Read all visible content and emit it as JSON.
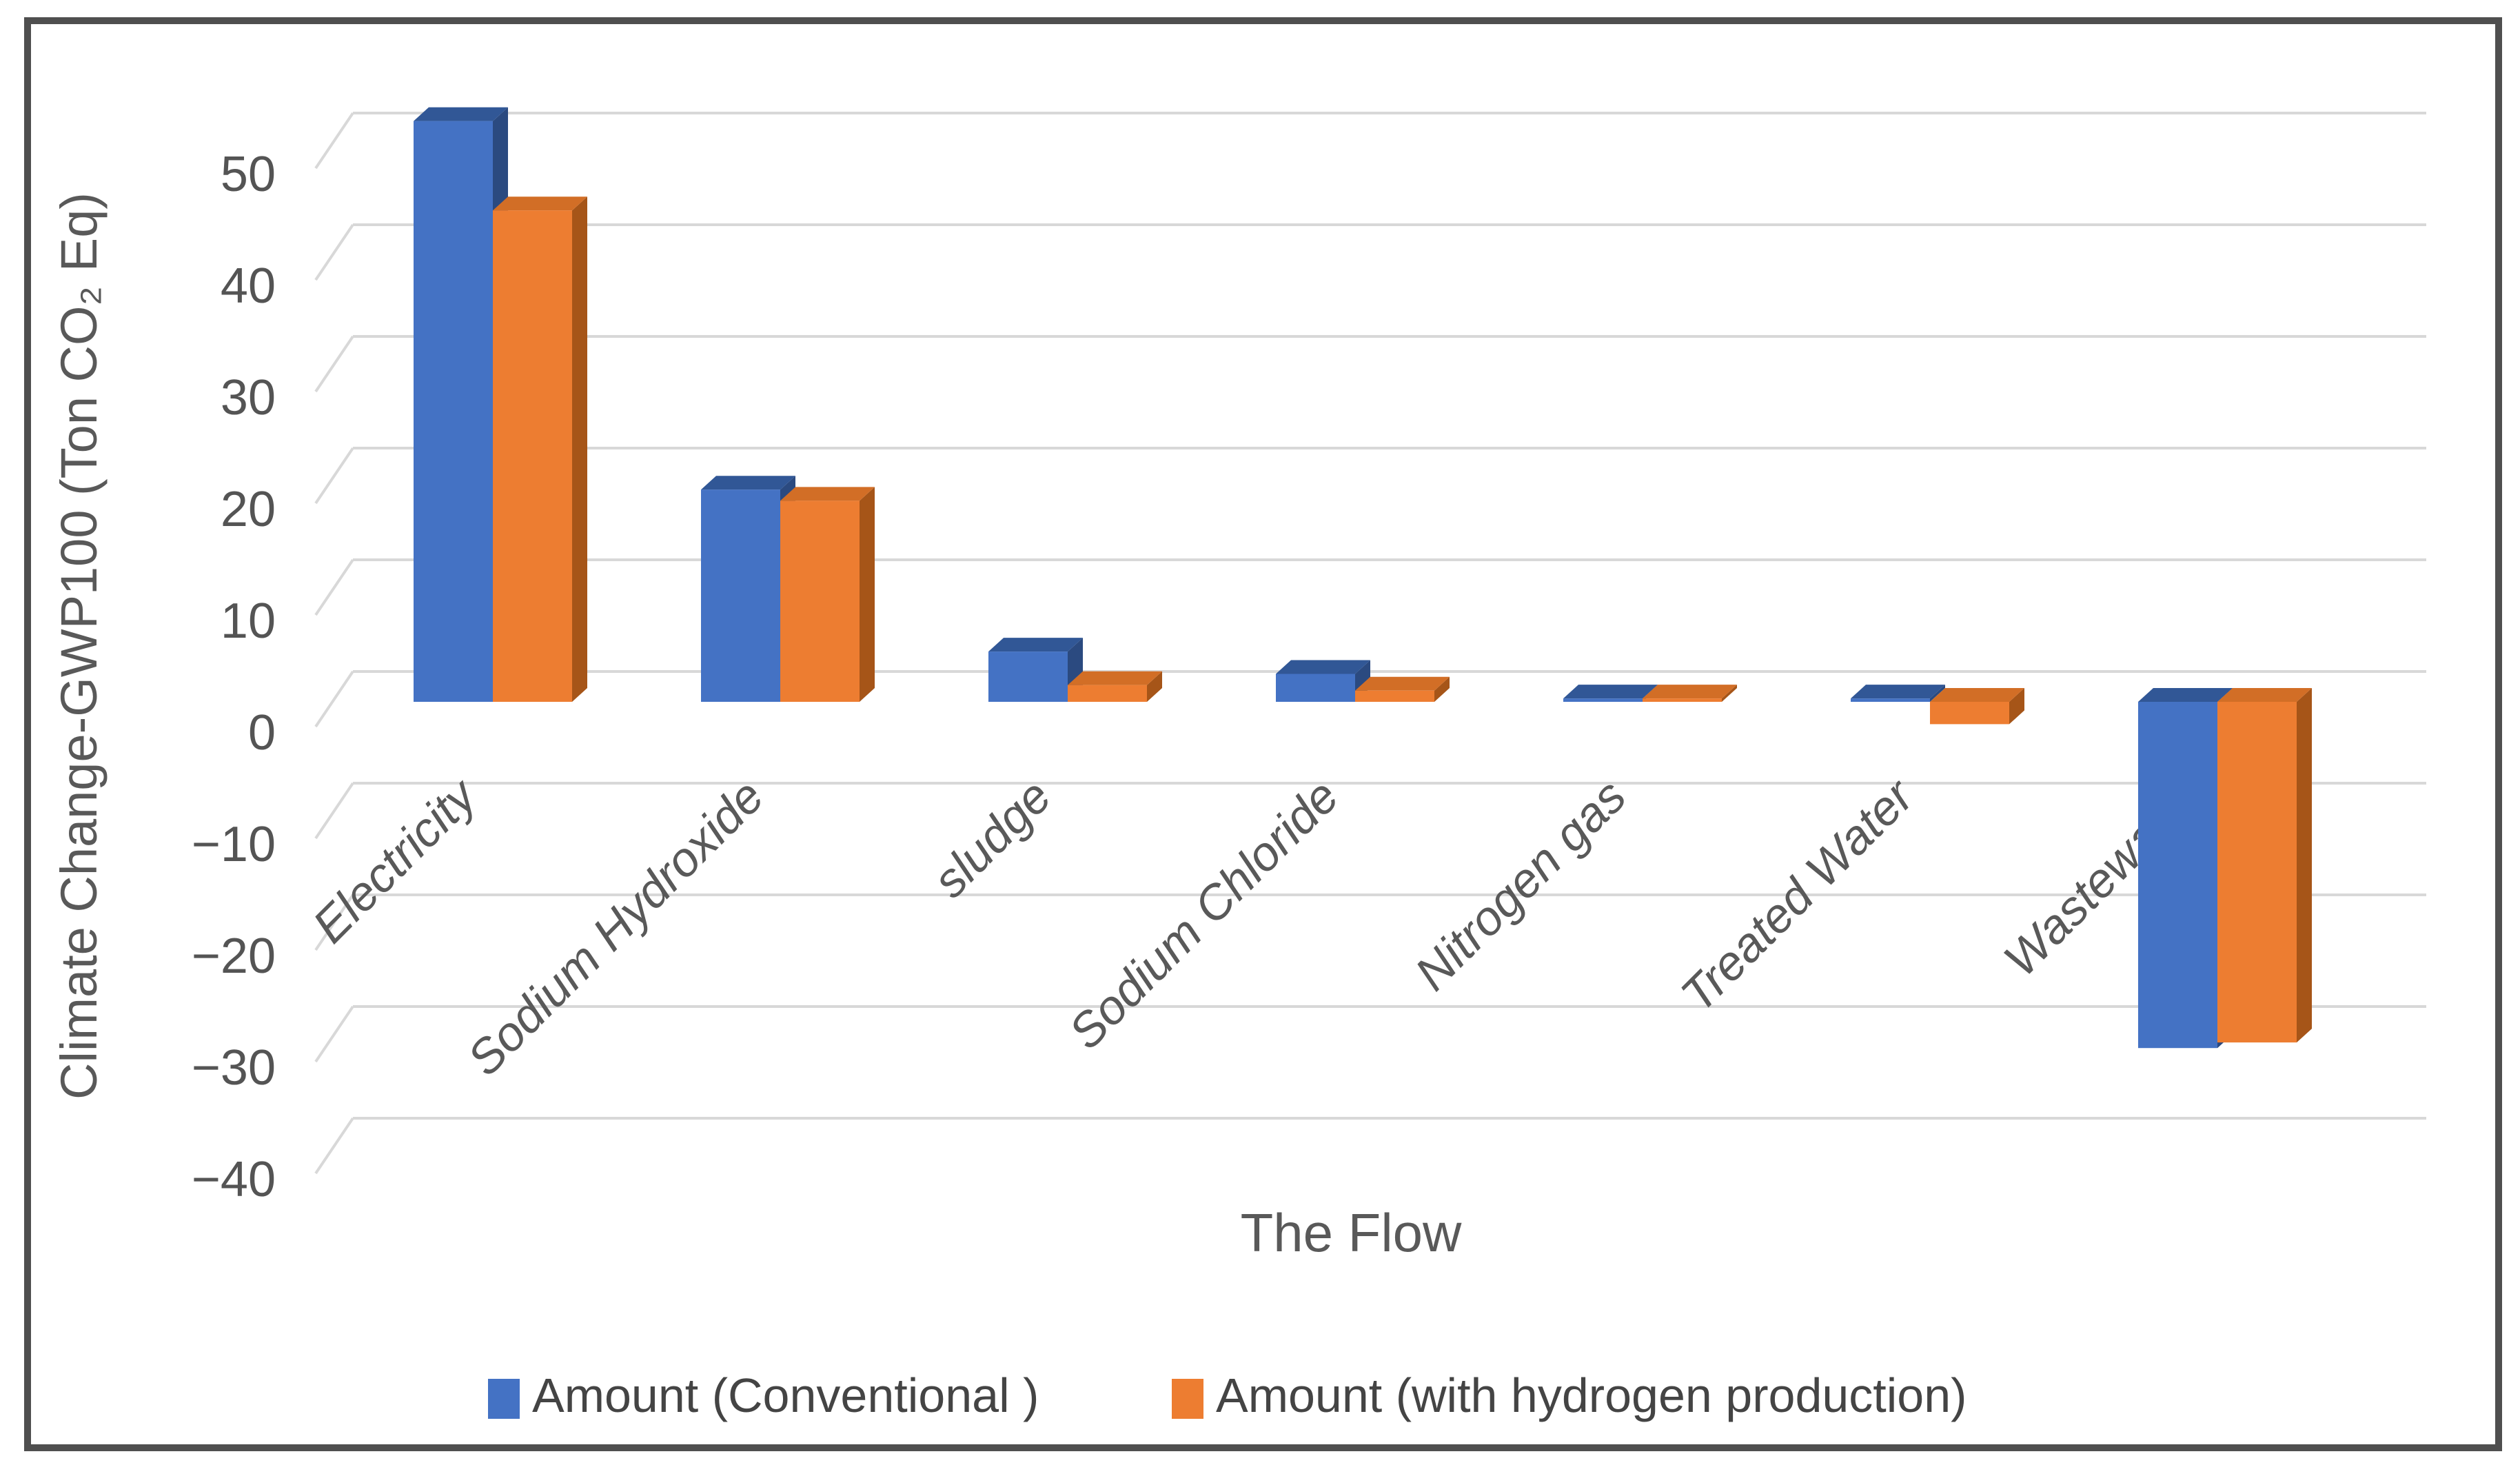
{
  "chart_data": {
    "type": "bar",
    "variant": "3d-clustered-column",
    "title": "",
    "xlabel": "The Flow",
    "ylabel": "Climate Change-GWP100 (Ton CO₂ Eq)",
    "categories": [
      "Electricity",
      "Sodium Hydroxide",
      "sludge",
      "Sodium Chloride",
      "Nitrogen gas",
      "Treated Water",
      "Wastewater"
    ],
    "series": [
      {
        "name": "Amount (Conventional )",
        "color": "#4472C4",
        "color_top": "#315796",
        "color_side": "#2B4A80",
        "values": [
          52,
          19,
          4.5,
          2.5,
          0.3,
          0.3,
          -31
        ]
      },
      {
        "name": "Amount (with hydrogen production)",
        "color": "#ED7D31",
        "color_top": "#D26E26",
        "color_side": "#A65518",
        "values": [
          44,
          18,
          1.5,
          1,
          0.3,
          -2,
          -30.5
        ]
      }
    ],
    "y_ticks": [
      50,
      40,
      30,
      20,
      10,
      0,
      -10,
      -20,
      -30,
      -40
    ],
    "ylim": [
      -40,
      55
    ],
    "grid": true,
    "legend_position": "bottom",
    "text_color": "#595959",
    "grid_color": "#D8D8D8",
    "frame_color": "#4F4F4F"
  }
}
